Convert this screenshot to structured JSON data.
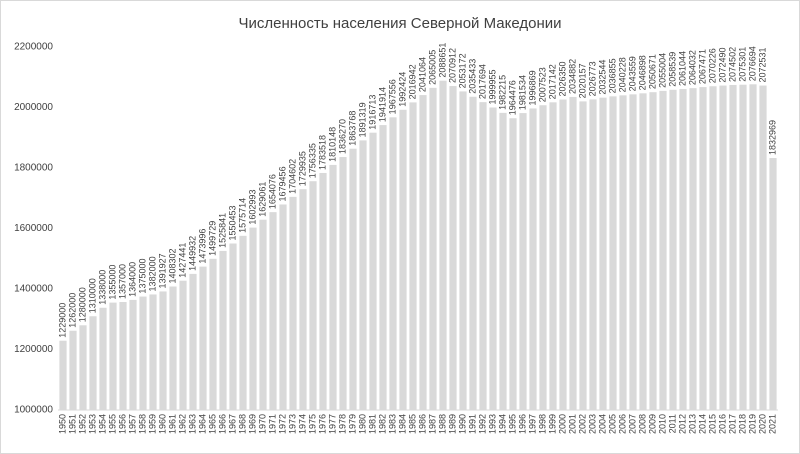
{
  "chart_data": {
    "type": "bar",
    "title": "Численность населения Северной Македонии",
    "categories": [
      "1950",
      "1951",
      "1952",
      "1953",
      "1954",
      "1955",
      "1956",
      "1957",
      "1958",
      "1959",
      "1960",
      "1961",
      "1962",
      "1963",
      "1964",
      "1965",
      "1966",
      "1967",
      "1968",
      "1969",
      "1970",
      "1971",
      "1972",
      "1973",
      "1974",
      "1975",
      "1976",
      "1977",
      "1978",
      "1979",
      "1980",
      "1981",
      "1982",
      "1983",
      "1984",
      "1985",
      "1986",
      "1987",
      "1988",
      "1989",
      "1990",
      "1991",
      "1992",
      "1993",
      "1994",
      "1995",
      "1996",
      "1997",
      "1998",
      "1999",
      "2000",
      "2001",
      "2002",
      "2003",
      "2004",
      "2005",
      "2006",
      "2007",
      "2008",
      "2009",
      "2010",
      "2011",
      "2012",
      "2013",
      "2014",
      "2015",
      "2016",
      "2017",
      "2018",
      "2019",
      "2020",
      "2021"
    ],
    "values": [
      1229000,
      1262000,
      1280000,
      1310000,
      1338000,
      1355000,
      1357000,
      1364000,
      1375000,
      1382000,
      1391927,
      1408302,
      1427441,
      1449932,
      1473996,
      1499729,
      1525841,
      1550453,
      1575714,
      1602993,
      1629061,
      1654076,
      1679456,
      1704602,
      1729935,
      1756335,
      1783518,
      1810148,
      1836270,
      1863768,
      1891319,
      1916713,
      1941914,
      1967556,
      1992424,
      2016942,
      2041064,
      2065005,
      2088651,
      2070912,
      2053172,
      2035433,
      2017694,
      1999955,
      1982215,
      1964476,
      1981534,
      1996869,
      2007523,
      2017142,
      2026350,
      2034882,
      2020157,
      2026773,
      2032544,
      2036855,
      2040228,
      2043559,
      2046898,
      2050671,
      2055004,
      2058539,
      2061044,
      2064032,
      2067471,
      2070226,
      2072490,
      2074502,
      2075301,
      2076694,
      2072531,
      1832969
    ],
    "color": "#d9d9d9",
    "ylim": [
      1000000,
      2200000
    ],
    "yticks": [
      1000000,
      1200000,
      1400000,
      1600000,
      1800000,
      2000000,
      2200000
    ],
    "grid": false
  }
}
